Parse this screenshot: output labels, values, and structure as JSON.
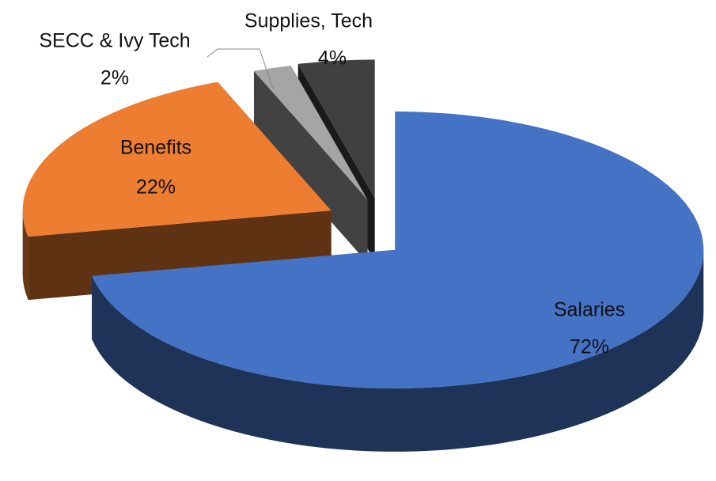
{
  "chart_data": {
    "type": "pie",
    "three_d": true,
    "exploded": true,
    "categories": [
      "Salaries",
      "Benefits",
      "SECC & Ivy Tech",
      "Supplies, Tech"
    ],
    "values": [
      72,
      22,
      2,
      4
    ],
    "value_labels": [
      "72%",
      "22%",
      "2%",
      "4%"
    ],
    "colors": [
      "#4472c4",
      "#ed7d31",
      "#a5a5a5",
      "#404040"
    ]
  }
}
